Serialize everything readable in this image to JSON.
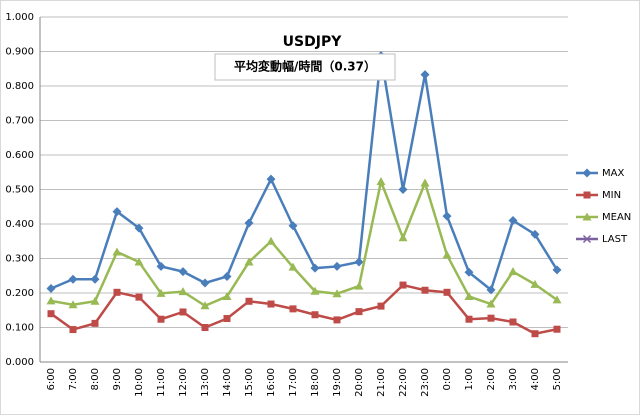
{
  "chart_data": {
    "type": "line",
    "title": "USDJPY",
    "subtitle": "平均変動幅/時間（0.37）",
    "categories": [
      "6:00",
      "7:00",
      "8:00",
      "9:00",
      "10:00",
      "11:00",
      "12:00",
      "13:00",
      "14:00",
      "15:00",
      "16:00",
      "17:00",
      "18:00",
      "19:00",
      "20:00",
      "21:00",
      "22:00",
      "23:00",
      "0:00",
      "1:00",
      "2:00",
      "3:00",
      "4:00",
      "5:00"
    ],
    "series": [
      {
        "name": "MAX",
        "color": "#4a7ebb",
        "marker": "diamond",
        "values": [
          0.213,
          0.24,
          0.24,
          0.436,
          0.388,
          0.277,
          0.262,
          0.229,
          0.248,
          0.403,
          0.53,
          0.395,
          0.272,
          0.277,
          0.29,
          0.888,
          0.5,
          0.833,
          0.423,
          0.26,
          0.209,
          0.41,
          0.37,
          0.267
        ]
      },
      {
        "name": "MIN",
        "color": "#be4b48",
        "marker": "square",
        "values": [
          0.14,
          0.094,
          0.112,
          0.202,
          0.188,
          0.124,
          0.145,
          0.1,
          0.126,
          0.176,
          0.168,
          0.154,
          0.137,
          0.122,
          0.146,
          0.162,
          0.223,
          0.208,
          0.202,
          0.124,
          0.127,
          0.116,
          0.082,
          0.095
        ]
      },
      {
        "name": "MEAN",
        "color": "#98b954",
        "marker": "triangle",
        "values": [
          0.177,
          0.166,
          0.176,
          0.319,
          0.29,
          0.199,
          0.204,
          0.163,
          0.19,
          0.29,
          0.35,
          0.275,
          0.205,
          0.198,
          0.22,
          0.523,
          0.36,
          0.519,
          0.31,
          0.19,
          0.168,
          0.262,
          0.225,
          0.18
        ]
      },
      {
        "name": "LAST",
        "color": "#7d60a0",
        "marker": "x",
        "values": [
          null,
          null,
          null,
          null,
          null,
          null,
          null,
          null,
          null,
          null,
          null,
          null,
          null,
          null,
          null,
          null,
          null,
          null,
          null,
          null,
          null,
          null,
          null,
          null
        ]
      }
    ],
    "ylim": [
      0,
      1
    ],
    "yticks": [
      {
        "value": 0,
        "label": "0.000"
      },
      {
        "value": 0.1,
        "label": "0.100"
      },
      {
        "value": 0.2,
        "label": "0.200"
      },
      {
        "value": 0.3,
        "label": "0.300"
      },
      {
        "value": 0.4,
        "label": "0.400"
      },
      {
        "value": 0.5,
        "label": "0.500"
      },
      {
        "value": 0.6,
        "label": "0.600"
      },
      {
        "value": 0.7,
        "label": "0.700"
      },
      {
        "value": 0.8,
        "label": "0.800"
      },
      {
        "value": 0.9,
        "label": "0.900"
      },
      {
        "value": 1,
        "label": "1.000"
      }
    ],
    "grid": true,
    "legend": "right"
  }
}
